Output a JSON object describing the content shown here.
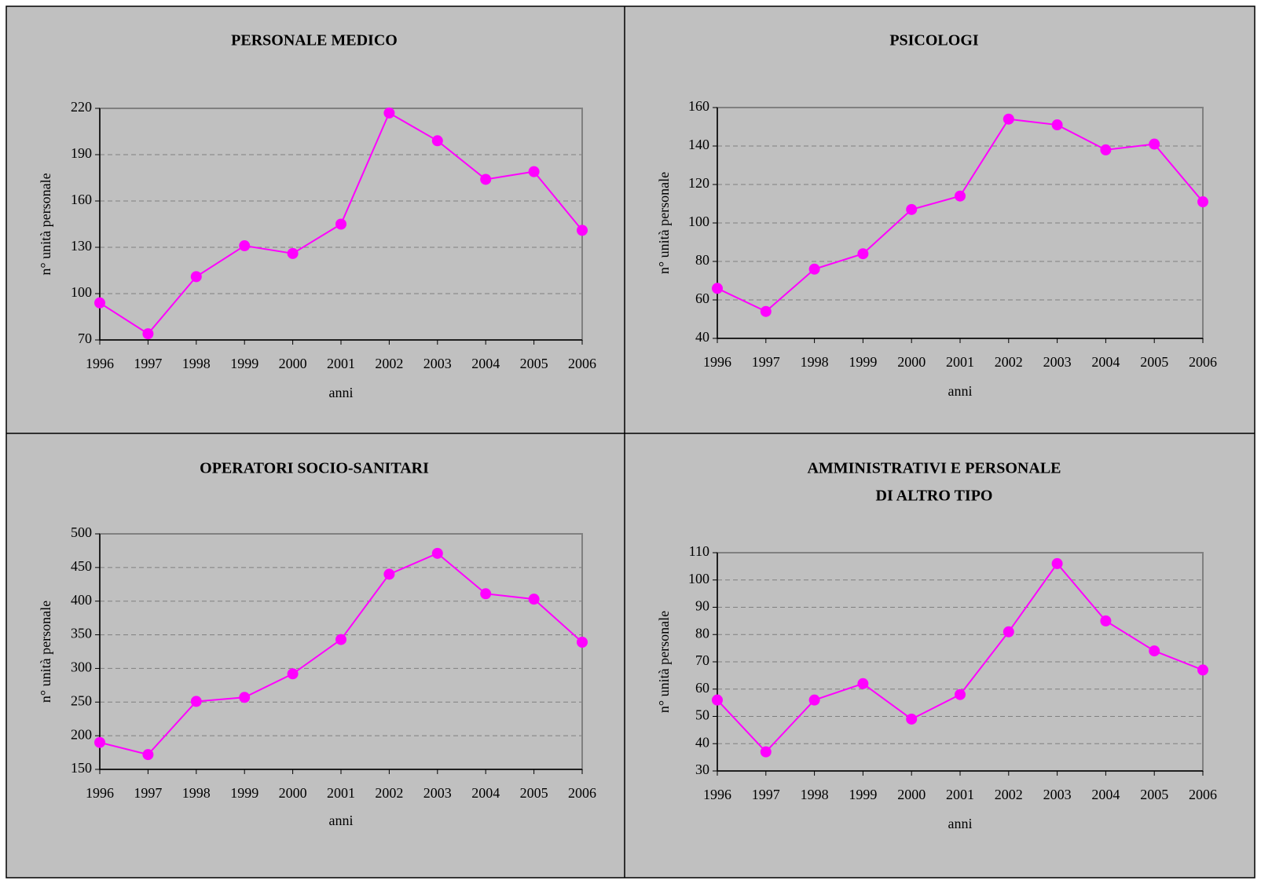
{
  "chart_data": [
    {
      "type": "line",
      "title": "PERSONALE MEDICO",
      "xlabel": "anni",
      "ylabel": "n° unità personale",
      "categories": [
        "1996",
        "1997",
        "1998",
        "1999",
        "2000",
        "2001",
        "2002",
        "2003",
        "2004",
        "2005",
        "2006"
      ],
      "series": [
        {
          "name": "PERSONALE MEDICO",
          "color": "#ff00ff",
          "values": [
            94,
            74,
            111,
            131,
            126,
            145,
            217,
            199,
            174,
            179,
            141
          ]
        }
      ],
      "ylim": [
        70,
        220
      ],
      "yticks": [
        70,
        100,
        130,
        160,
        190,
        220
      ],
      "grid": true
    },
    {
      "type": "line",
      "title": "PSICOLOGI",
      "xlabel": "anni",
      "ylabel": "n° unità personale",
      "categories": [
        "1996",
        "1997",
        "1998",
        "1999",
        "2000",
        "2001",
        "2002",
        "2003",
        "2004",
        "2005",
        "2006"
      ],
      "series": [
        {
          "name": "PSICOLOGI",
          "color": "#ff00ff",
          "values": [
            66,
            54,
            76,
            84,
            107,
            114,
            154,
            151,
            138,
            141,
            111
          ]
        }
      ],
      "ylim": [
        40,
        160
      ],
      "yticks": [
        40,
        60,
        80,
        100,
        120,
        140,
        160
      ],
      "grid": true
    },
    {
      "type": "line",
      "title": "OPERATORI SOCIO-SANITARI",
      "xlabel": "anni",
      "ylabel": "n° unità personale",
      "categories": [
        "1996",
        "1997",
        "1998",
        "1999",
        "2000",
        "2001",
        "2002",
        "2003",
        "2004",
        "2005",
        "2006"
      ],
      "series": [
        {
          "name": "OPERATORI SOCIO-SANITARI",
          "color": "#ff00ff",
          "values": [
            190,
            172,
            251,
            257,
            292,
            343,
            440,
            471,
            411,
            403,
            339
          ]
        }
      ],
      "ylim": [
        150,
        500
      ],
      "yticks": [
        150,
        200,
        250,
        300,
        350,
        400,
        450,
        500
      ],
      "grid": true
    },
    {
      "type": "line",
      "title": [
        "AMMINISTRATIVI E PERSONALE",
        "DI ALTRO TIPO"
      ],
      "xlabel": "anni",
      "ylabel": "n° unità personale",
      "categories": [
        "1996",
        "1997",
        "1998",
        "1999",
        "2000",
        "2001",
        "2002",
        "2003",
        "2004",
        "2005",
        "2006"
      ],
      "series": [
        {
          "name": "AMMINISTRATIVI E PERSONALE DI ALTRO TIPO",
          "color": "#ff00ff",
          "values": [
            56,
            37,
            56,
            62,
            49,
            58,
            81,
            106,
            85,
            74,
            67
          ]
        }
      ],
      "ylim": [
        30,
        110
      ],
      "yticks": [
        30,
        40,
        50,
        60,
        70,
        80,
        90,
        100,
        110
      ],
      "grid": true
    }
  ]
}
